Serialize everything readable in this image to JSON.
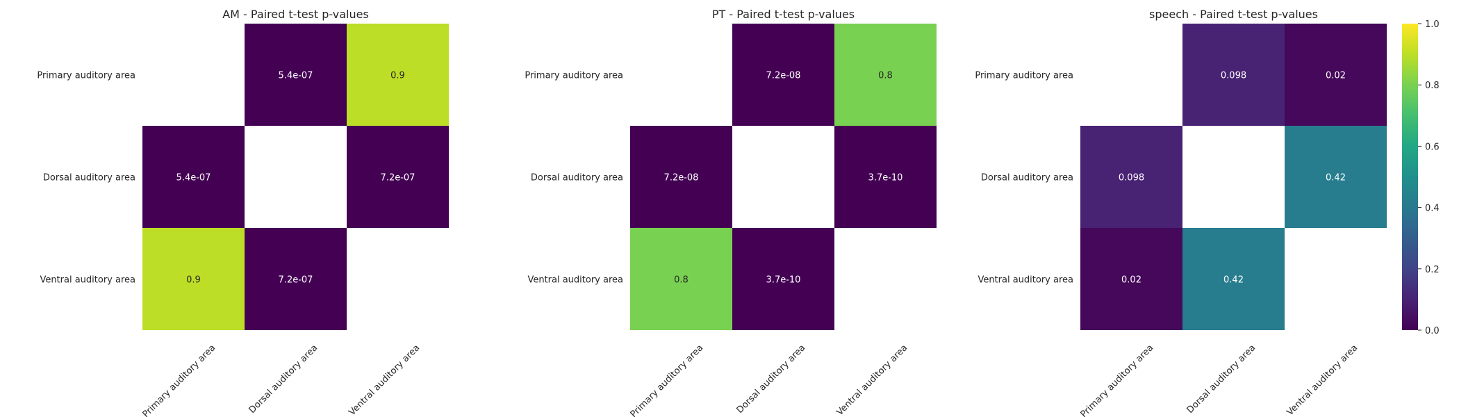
{
  "chart_data": [
    {
      "type": "heatmap",
      "title": "AM - Paired t-test p-values",
      "rows": [
        "Primary auditory area",
        "Dorsal auditory area",
        "Ventral auditory area"
      ],
      "columns": [
        "Primary auditory area",
        "Dorsal auditory area",
        "Ventral auditory area"
      ],
      "values": [
        [
          null,
          5.4e-07,
          0.9
        ],
        [
          5.4e-07,
          null,
          7.2e-07
        ],
        [
          0.9,
          7.2e-07,
          null
        ]
      ],
      "annotations": [
        [
          "",
          "5.4e-07",
          "0.9"
        ],
        [
          "5.4e-07",
          "",
          "7.2e-07"
        ],
        [
          "0.9",
          "7.2e-07",
          ""
        ]
      ]
    },
    {
      "type": "heatmap",
      "title": "PT - Paired t-test p-values",
      "rows": [
        "Primary auditory area",
        "Dorsal auditory area",
        "Ventral auditory area"
      ],
      "columns": [
        "Primary auditory area",
        "Dorsal auditory area",
        "Ventral auditory area"
      ],
      "values": [
        [
          null,
          7.2e-08,
          0.8
        ],
        [
          7.2e-08,
          null,
          3.7e-10
        ],
        [
          0.8,
          3.7e-10,
          null
        ]
      ],
      "annotations": [
        [
          "",
          "7.2e-08",
          "0.8"
        ],
        [
          "7.2e-08",
          "",
          "3.7e-10"
        ],
        [
          "0.8",
          "3.7e-10",
          ""
        ]
      ]
    },
    {
      "type": "heatmap",
      "title": "speech - Paired t-test p-values",
      "rows": [
        "Primary auditory area",
        "Dorsal auditory area",
        "Ventral auditory area"
      ],
      "columns": [
        "Primary auditory area",
        "Dorsal auditory area",
        "Ventral auditory area"
      ],
      "values": [
        [
          null,
          0.098,
          0.02
        ],
        [
          0.098,
          null,
          0.42
        ],
        [
          0.02,
          0.42,
          null
        ]
      ],
      "annotations": [
        [
          "",
          "0.098",
          "0.02"
        ],
        [
          "0.098",
          "",
          "0.42"
        ],
        [
          "0.02",
          "0.42",
          ""
        ]
      ]
    }
  ],
  "colorbar": {
    "colormap": "viridis",
    "range": [
      0,
      1
    ],
    "ticks": [
      "0.0",
      "0.2",
      "0.4",
      "0.6",
      "0.8",
      "1.0"
    ],
    "tick_values": [
      0,
      0.2,
      0.4,
      0.6,
      0.8,
      1.0
    ]
  },
  "colors": {
    "background": "#ffffff",
    "text": "#262626",
    "diagonal_cell": "#ffffff"
  }
}
